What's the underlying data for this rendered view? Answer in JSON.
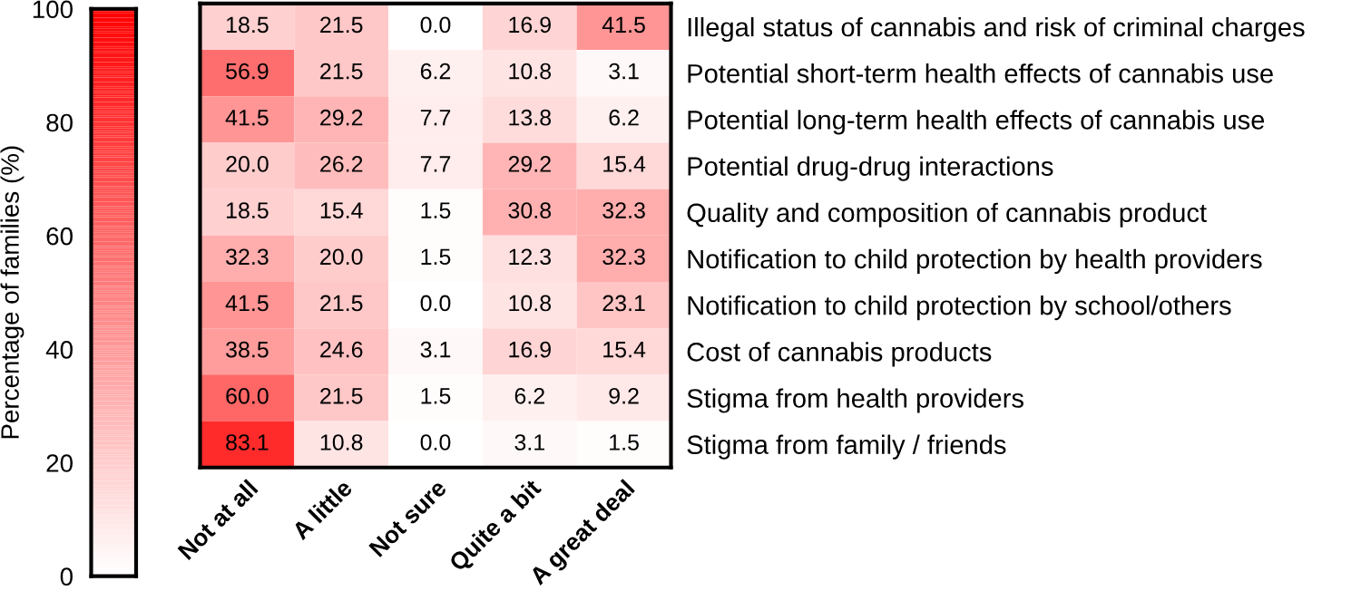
{
  "chart_data": {
    "type": "heatmap",
    "categories": [
      "Not at all",
      "A little",
      "Not sure",
      "Quite a bit",
      "A great deal"
    ],
    "y_categories": [
      "Illegal status of cannabis and risk of criminal charges",
      "Potential short-term health effects of cannabis use",
      "Potential long-term health effects of cannabis use",
      "Potential drug-drug interactions",
      "Quality and composition of cannabis product",
      "Notification to child protection by health providers",
      "Notification to child protection by school/others",
      "Cost of cannabis products",
      "Stigma from health providers",
      "Stigma from family / friends"
    ],
    "cells": [
      [
        18.5,
        21.5,
        0.0,
        16.9,
        41.5
      ],
      [
        56.9,
        21.5,
        6.2,
        10.8,
        3.1
      ],
      [
        41.5,
        29.2,
        7.7,
        13.8,
        6.2
      ],
      [
        20.0,
        26.2,
        7.7,
        29.2,
        15.4
      ],
      [
        18.5,
        15.4,
        1.5,
        30.8,
        32.3
      ],
      [
        32.3,
        20.0,
        1.5,
        12.3,
        32.3
      ],
      [
        41.5,
        21.5,
        0.0,
        10.8,
        23.1
      ],
      [
        38.5,
        24.6,
        3.1,
        16.9,
        15.4
      ],
      [
        60.0,
        21.5,
        1.5,
        6.2,
        9.2
      ],
      [
        83.1,
        10.8,
        0.0,
        3.1,
        1.5
      ]
    ],
    "cell_labels": [
      [
        "18.5",
        "21.5",
        "0.0",
        "16.9",
        "41.5"
      ],
      [
        "56.9",
        "21.5",
        "6.2",
        "10.8",
        "3.1"
      ],
      [
        "41.5",
        "29.2",
        "7.7",
        "13.8",
        "6.2"
      ],
      [
        "20.0",
        "26.2",
        "7.7",
        "29.2",
        "15.4"
      ],
      [
        "18.5",
        "15.4",
        "1.5",
        "30.8",
        "32.3"
      ],
      [
        "32.3",
        "20.0",
        "1.5",
        "12.3",
        "32.3"
      ],
      [
        "41.5",
        "21.5",
        "0.0",
        "10.8",
        "23.1"
      ],
      [
        "38.5",
        "24.6",
        "3.1",
        "16.9",
        "15.4"
      ],
      [
        "60.0",
        "21.5",
        "1.5",
        "6.2",
        "9.2"
      ],
      [
        "83.1",
        "10.8",
        "0.0",
        "3.1",
        "1.5"
      ]
    ],
    "clim": [
      0,
      100
    ],
    "cticks": [
      0,
      20,
      40,
      60,
      80,
      100
    ],
    "clabel": "Percentage of families (%)"
  }
}
